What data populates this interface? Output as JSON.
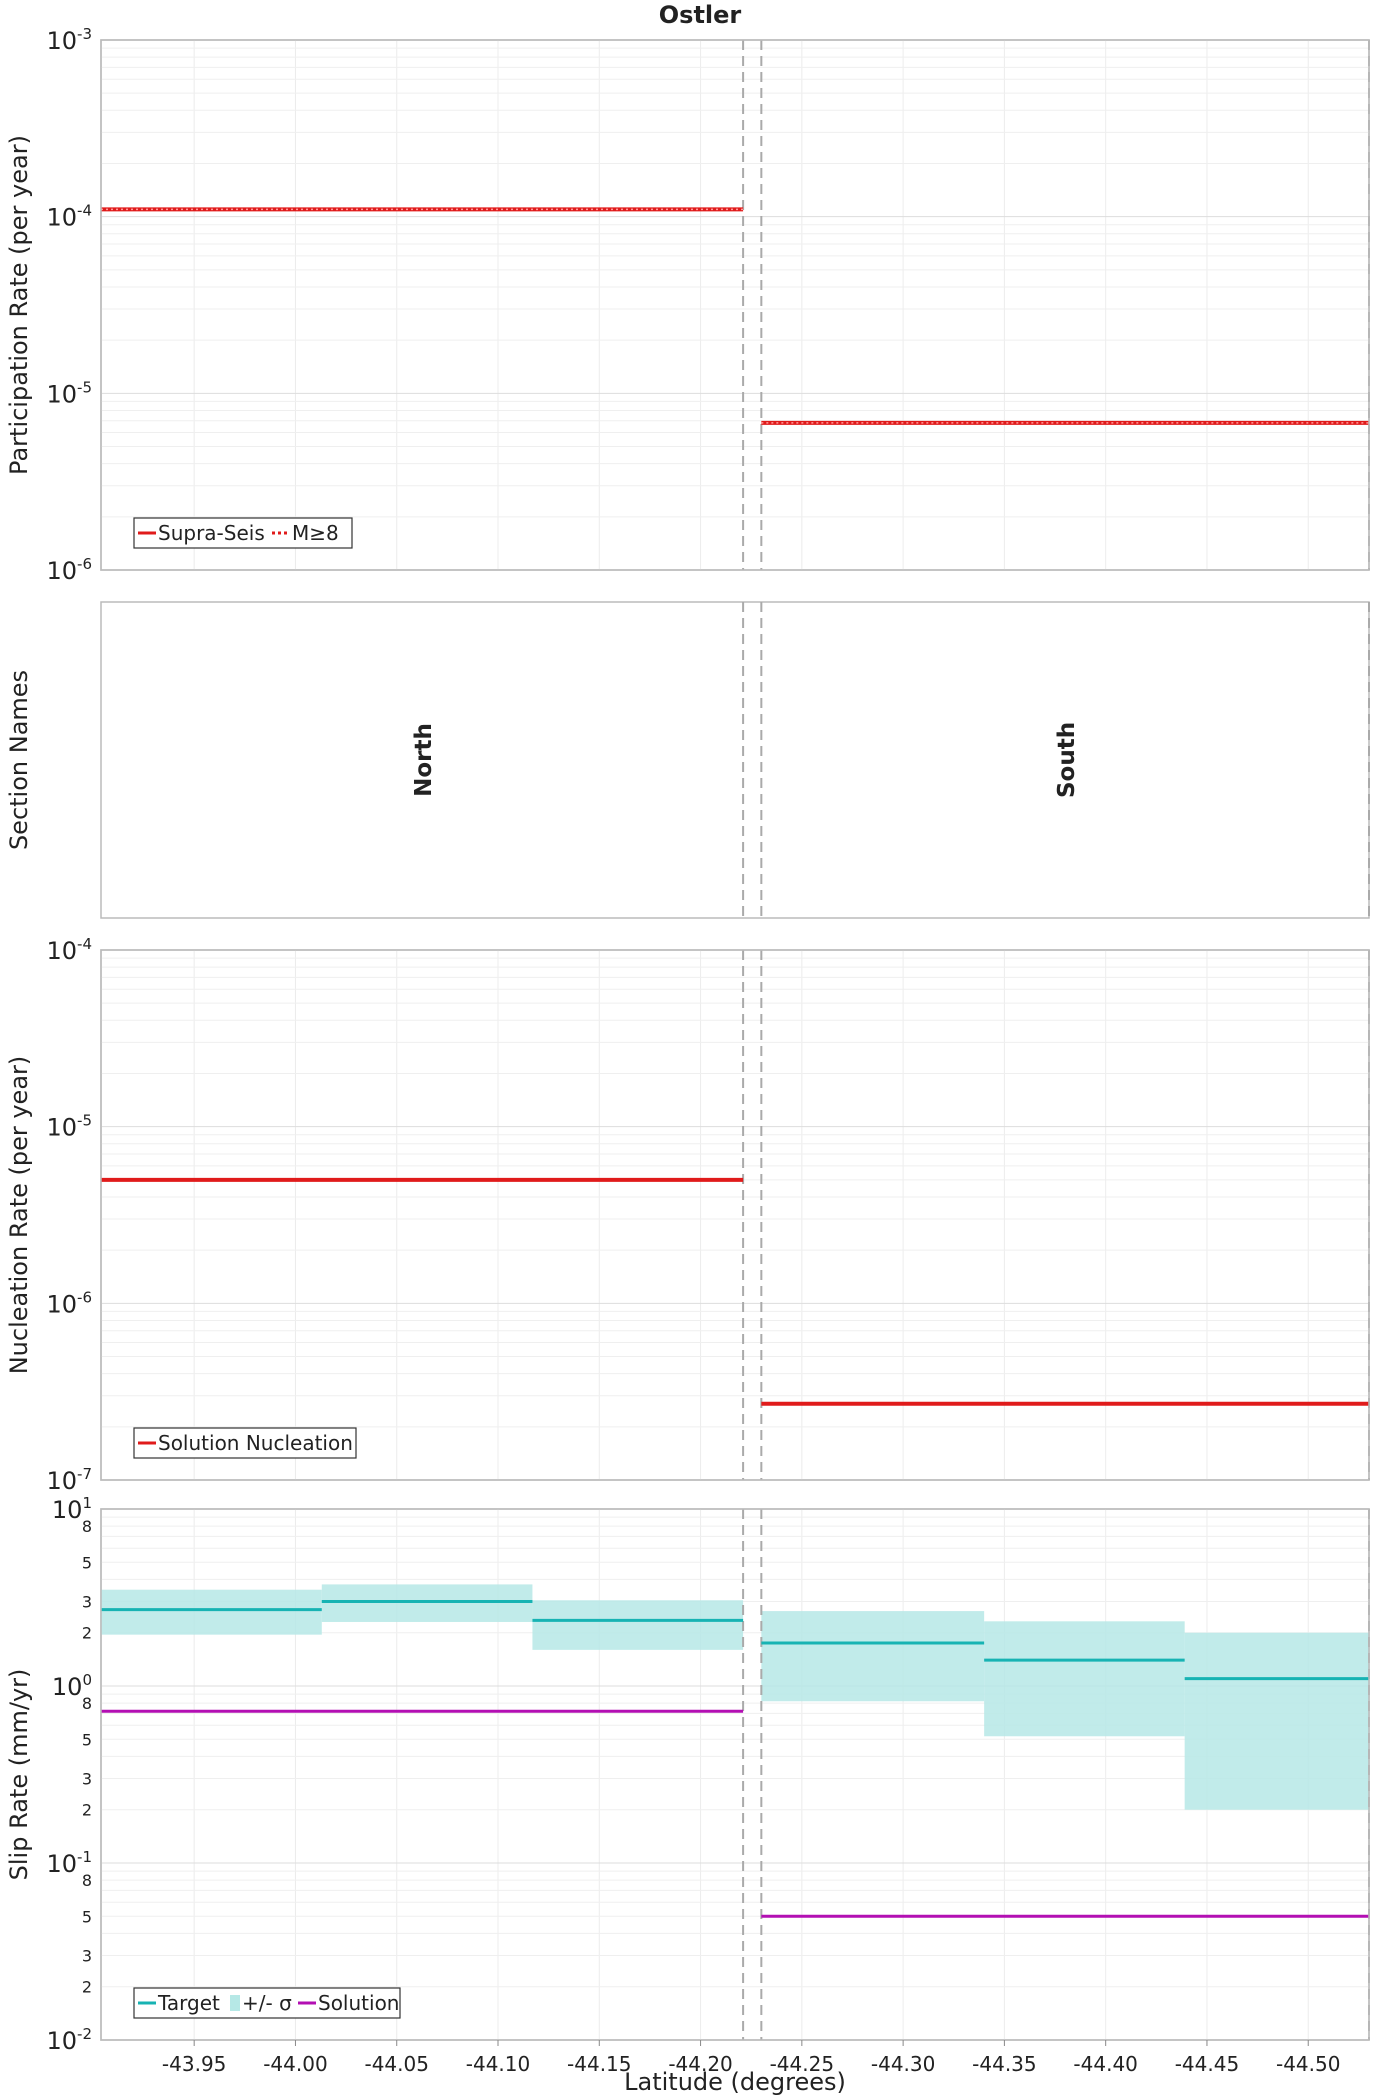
{
  "title": "Ostler",
  "colors": {
    "supra_seis": "#e01b1b",
    "nucleation": "#e01b1b",
    "target": "#17b3b3",
    "sigma_band": "#b6e8e6",
    "solution": "#b30fb3",
    "divider": "#aaaaaa"
  },
  "chart_data": [
    {
      "type": "line",
      "panel": "participation",
      "ylabel": "Participation Rate (per year)",
      "yscale": "log",
      "ylim": [
        1e-06,
        0.001
      ],
      "ytick_labels": [
        {
          "base": "10",
          "exp": "-6"
        },
        {
          "base": "10",
          "exp": "-5"
        },
        {
          "base": "10",
          "exp": "-4"
        },
        {
          "base": "10",
          "exp": "-3"
        }
      ],
      "xlim": [
        -43.904,
        -44.53
      ],
      "legend_position": "bottom-left",
      "legend": [
        "Supra-Seis",
        "M≥8"
      ],
      "series": [
        {
          "name": "Supra-Seis",
          "style": "solid",
          "segments": [
            {
              "x0": -43.904,
              "x1": -44.221,
              "y": 0.00011
            },
            {
              "x0": -44.23,
              "x1": -44.53,
              "y": 6.8e-06
            }
          ]
        },
        {
          "name": "M≥8",
          "style": "dotted",
          "segments": [
            {
              "x0": -43.904,
              "x1": -44.221,
              "y": 0.00011
            },
            {
              "x0": -44.23,
              "x1": -44.53,
              "y": 6.8e-06
            }
          ]
        }
      ]
    },
    {
      "type": "table",
      "panel": "sections",
      "ylabel": "Section Names",
      "sections": [
        {
          "name": "North",
          "x0": -43.904,
          "x1": -44.221
        },
        {
          "name": "South",
          "x0": -44.23,
          "x1": -44.53
        }
      ]
    },
    {
      "type": "line",
      "panel": "nucleation",
      "ylabel": "Nucleation Rate (per year)",
      "yscale": "log",
      "ylim": [
        1e-07,
        0.0001
      ],
      "ytick_labels": [
        {
          "base": "10",
          "exp": "-7"
        },
        {
          "base": "10",
          "exp": "-6"
        },
        {
          "base": "10",
          "exp": "-5"
        },
        {
          "base": "10",
          "exp": "-4"
        }
      ],
      "xlim": [
        -43.904,
        -44.53
      ],
      "legend_position": "bottom-left",
      "legend": [
        "Solution Nucleation"
      ],
      "series": [
        {
          "name": "Solution Nucleation",
          "style": "solid",
          "segments": [
            {
              "x0": -43.904,
              "x1": -44.221,
              "y": 5e-06
            },
            {
              "x0": -44.23,
              "x1": -44.53,
              "y": 2.7e-07
            }
          ]
        }
      ]
    },
    {
      "type": "line",
      "panel": "slip",
      "ylabel": "Slip Rate (mm/yr)",
      "xlabel": "Latitude (degrees)",
      "yscale": "log",
      "ylim": [
        0.01,
        10
      ],
      "ytick_labels": [
        {
          "base": "10",
          "exp": "-2"
        },
        {
          "base": "10",
          "exp": "-1"
        },
        {
          "base": "10",
          "exp": "0"
        },
        {
          "base": "10",
          "exp": "1"
        }
      ],
      "yminor_labels": [
        {
          "value": 0.02,
          "label": "2"
        },
        {
          "value": 0.03,
          "label": "3"
        },
        {
          "value": 0.05,
          "label": "5"
        },
        {
          "value": 0.08,
          "label": "8"
        },
        {
          "value": 0.2,
          "label": "2"
        },
        {
          "value": 0.3,
          "label": "3"
        },
        {
          "value": 0.5,
          "label": "5"
        },
        {
          "value": 0.8,
          "label": "8"
        },
        {
          "value": 2,
          "label": "2"
        },
        {
          "value": 3,
          "label": "3"
        },
        {
          "value": 5,
          "label": "5"
        },
        {
          "value": 8,
          "label": "8"
        }
      ],
      "xlim": [
        -43.904,
        -44.53
      ],
      "xticks": [
        -43.95,
        -44.0,
        -44.05,
        -44.1,
        -44.15,
        -44.2,
        -44.25,
        -44.3,
        -44.35,
        -44.4,
        -44.45,
        -44.5
      ],
      "xtick_labels": [
        "-43.95",
        "-44.00",
        "-44.05",
        "-44.10",
        "-44.15",
        "-44.20",
        "-44.25",
        "-44.30",
        "-44.35",
        "-44.40",
        "-44.45",
        "-44.50"
      ],
      "legend_position": "bottom-left",
      "legend": [
        "Target",
        "+/- σ",
        "Solution"
      ],
      "target": [
        {
          "x0": -43.904,
          "x1": -44.013,
          "y": 2.7,
          "lo": 1.95,
          "hi": 3.5
        },
        {
          "x0": -44.013,
          "x1": -44.117,
          "y": 3.0,
          "lo": 2.3,
          "hi": 3.75
        },
        {
          "x0": -44.117,
          "x1": -44.221,
          "y": 2.35,
          "lo": 1.6,
          "hi": 3.05
        },
        {
          "x0": -44.23,
          "x1": -44.34,
          "y": 1.75,
          "lo": 0.82,
          "hi": 2.65
        },
        {
          "x0": -44.34,
          "x1": -44.439,
          "y": 1.4,
          "lo": 0.52,
          "hi": 2.32
        },
        {
          "x0": -44.439,
          "x1": -44.53,
          "y": 1.1,
          "lo": 0.2,
          "hi": 2.0
        }
      ],
      "solution": [
        {
          "x0": -43.904,
          "x1": -44.221,
          "y": 0.72
        },
        {
          "x0": -44.23,
          "x1": -44.53,
          "y": 0.05
        }
      ]
    }
  ],
  "section_boundaries": [
    -44.221,
    -44.23,
    -44.53
  ]
}
